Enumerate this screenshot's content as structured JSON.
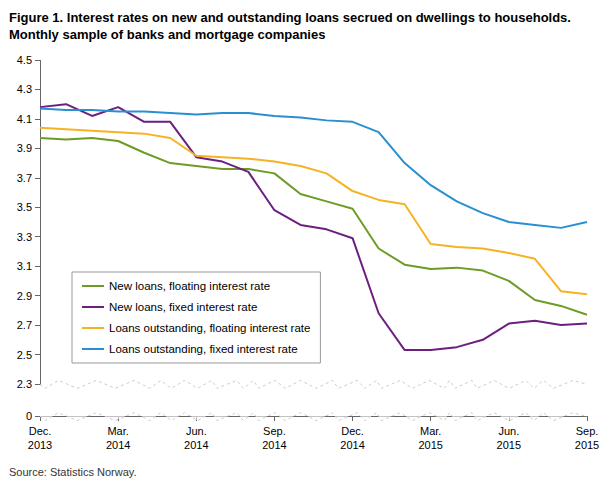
{
  "chart_data": {
    "type": "line",
    "title": "Figure 1. Interest rates on new and outstanding loans secrued on dwellings to households. Monthly sample of banks and mortgage companies",
    "source": "Source: Statistics Norway.",
    "categories": [
      "Dec.\n2013",
      null,
      null,
      "Mar.\n2014",
      null,
      null,
      "Jun.\n2014",
      null,
      null,
      "Sep.\n2014",
      null,
      null,
      "Dec.\n2014",
      null,
      null,
      "Mar.\n2015",
      null,
      null,
      "Jun.\n2015",
      null,
      null,
      "Sep.\n2015"
    ],
    "series": [
      {
        "name": "New loans, floating interest rate",
        "color": "#6e9b26",
        "values": [
          3.97,
          3.96,
          3.97,
          3.95,
          3.87,
          3.8,
          3.78,
          3.76,
          3.76,
          3.73,
          3.59,
          3.54,
          3.49,
          3.22,
          3.11,
          3.08,
          3.09,
          3.07,
          3.0,
          2.87,
          2.83,
          2.77
        ]
      },
      {
        "name": "New loans, fixed interest rate",
        "color": "#6d1f7f",
        "values": [
          4.18,
          4.2,
          4.12,
          4.18,
          4.08,
          4.08,
          3.84,
          3.81,
          3.74,
          3.48,
          3.38,
          3.35,
          3.29,
          2.78,
          2.53,
          2.53,
          2.55,
          2.6,
          2.71,
          2.73,
          2.7,
          2.71
        ]
      },
      {
        "name": "Loans outstanding, floating interest rate",
        "color": "#f5b324",
        "values": [
          4.04,
          4.03,
          4.02,
          4.01,
          4.0,
          3.97,
          3.85,
          3.84,
          3.83,
          3.81,
          3.78,
          3.73,
          3.61,
          3.55,
          3.52,
          3.25,
          3.23,
          3.22,
          3.19,
          3.15,
          2.93,
          2.91
        ]
      },
      {
        "name": "Loans outstanding, fixed interest rate",
        "color": "#2a8fd1",
        "values": [
          4.17,
          4.16,
          4.16,
          4.15,
          4.15,
          4.14,
          4.13,
          4.14,
          4.14,
          4.12,
          4.11,
          4.09,
          4.08,
          4.01,
          3.8,
          3.65,
          3.54,
          3.46,
          3.4,
          3.38,
          3.36,
          3.4
        ]
      }
    ],
    "ylim": [
      0,
      4.5
    ],
    "yticks": [
      0,
      2.3,
      2.5,
      2.7,
      2.9,
      3.1,
      3.3,
      3.5,
      3.7,
      3.9,
      4.1,
      4.3,
      4.5
    ],
    "grid": false,
    "legend": "left"
  }
}
